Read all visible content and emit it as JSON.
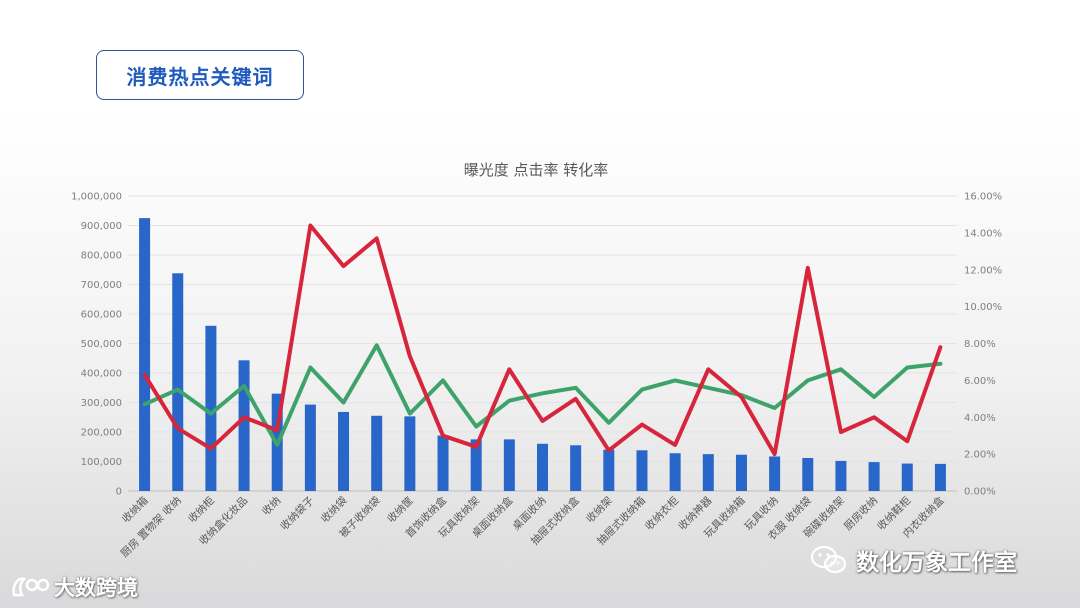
{
  "header": {
    "title": "消费热点关键词"
  },
  "watermarks": {
    "left": "大数跨境",
    "right": "数化万象工作室"
  },
  "chart_data": {
    "type": "bar",
    "title": "曝光度 点击率 转化率",
    "categories": [
      "收纳箱",
      "厨房 置物架 收纳",
      "收纳柜",
      "收纳盒化妆品",
      "收纳",
      "收纳袋子",
      "收纳袋",
      "被子收纳袋",
      "收纳筐",
      "首饰收纳盒",
      "玩具收纳架",
      "桌面收纳盒",
      "桌面收纳",
      "抽屉式收纳盒",
      "收纳架",
      "抽屉式收纳箱",
      "收纳衣柜",
      "收纳神器",
      "玩具收纳箱",
      "玩具收纳",
      "衣服 收纳袋",
      "碗碟收纳架",
      "厨房收纳",
      "收纳鞋柜",
      "内衣收纳盒"
    ],
    "series": [
      {
        "name": "曝光度",
        "type": "bar",
        "axis": "left",
        "color": "#2966c9",
        "values": [
          925000,
          738000,
          560000,
          443000,
          330000,
          293000,
          268000,
          255000,
          253000,
          188000,
          175000,
          175000,
          160000,
          155000,
          140000,
          138000,
          128000,
          125000,
          123000,
          117000,
          112000,
          102000,
          98000,
          93000,
          92000
        ]
      },
      {
        "name": "点击率",
        "type": "line",
        "axis": "right",
        "color": "#3da36a",
        "values": [
          4.7,
          5.5,
          4.2,
          5.7,
          2.5,
          6.7,
          4.8,
          7.9,
          4.2,
          6.0,
          3.5,
          4.9,
          5.3,
          5.6,
          3.7,
          5.5,
          6.0,
          5.6,
          5.2,
          4.5,
          6.0,
          6.6,
          5.1,
          6.7,
          6.9
        ]
      },
      {
        "name": "转化率",
        "type": "line",
        "axis": "right",
        "color": "#d7253b",
        "values": [
          6.3,
          3.4,
          2.3,
          4.0,
          3.3,
          14.4,
          12.2,
          13.7,
          7.3,
          3.0,
          2.4,
          6.6,
          3.8,
          5.0,
          2.2,
          3.6,
          2.5,
          6.6,
          5.1,
          2.0,
          12.1,
          3.2,
          4.0,
          2.7,
          7.8
        ]
      }
    ],
    "y_left": {
      "min": 0,
      "max": 1000000,
      "ticks": [
        "0",
        "100,000",
        "200,000",
        "300,000",
        "400,000",
        "500,000",
        "600,000",
        "700,000",
        "800,000",
        "900,000",
        "1,000,000"
      ]
    },
    "y_right": {
      "min": 0,
      "max": 16,
      "ticks": [
        "0.00%",
        "2.00%",
        "4.00%",
        "6.00%",
        "8.00%",
        "10.00%",
        "12.00%",
        "14.00%",
        "16.00%"
      ]
    },
    "grid": true,
    "legend": "none"
  }
}
